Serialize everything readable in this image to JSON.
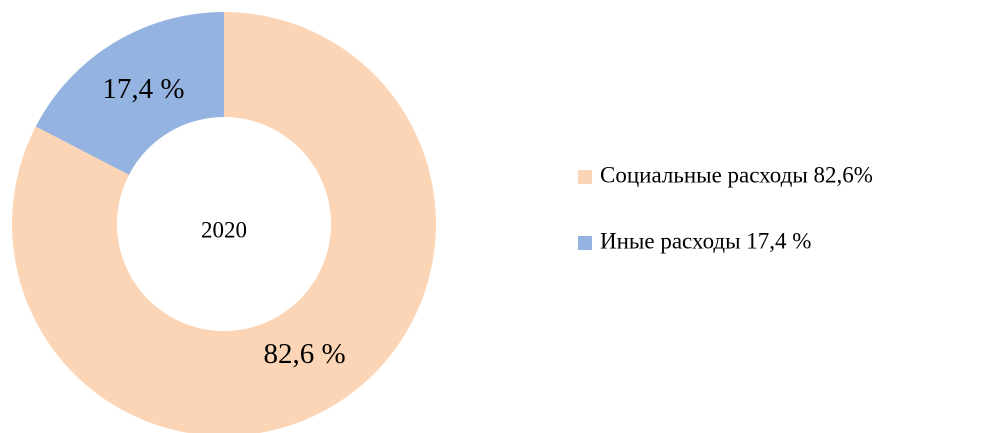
{
  "chart_data": {
    "type": "pie",
    "center_label": "2020",
    "categories": [
      "Социальные расходы 82,6%",
      "Иные расходы 17,4 %"
    ],
    "values": [
      82.6,
      17.4
    ],
    "value_labels": [
      "82,6 %",
      "17,4 %"
    ],
    "colors": [
      "#fbd5b5",
      "#95b3e0"
    ],
    "legend": "right"
  }
}
